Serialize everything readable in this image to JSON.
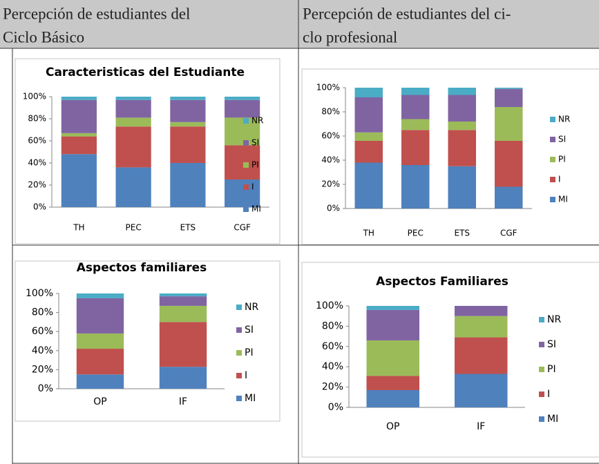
{
  "table": {
    "headers": [
      [
        "Percepción de estudiantes del",
        "Ciclo Básico"
      ],
      [
        "Percepción de estudiantes del ci-",
        "clo profesional"
      ]
    ]
  },
  "chart_data": [
    {
      "type": "bar",
      "stacked": true,
      "title": "Caracteristicas del Estudiante",
      "categories": [
        "TH",
        "PEC",
        "ETS",
        "CGF"
      ],
      "series": [
        {
          "name": "MI",
          "color": "#4f81bd",
          "values": [
            48,
            36,
            40,
            25
          ]
        },
        {
          "name": "I",
          "color": "#c0504d",
          "values": [
            16,
            37,
            33,
            31
          ]
        },
        {
          "name": "PI",
          "color": "#9bbb59",
          "values": [
            3,
            8,
            4,
            25
          ]
        },
        {
          "name": "SI",
          "color": "#8064a2",
          "values": [
            30,
            16,
            20,
            16
          ]
        },
        {
          "name": "NR",
          "color": "#4bacc6",
          "values": [
            3,
            3,
            3,
            3
          ]
        }
      ],
      "ylim": [
        0,
        100
      ],
      "yticks": [
        {
          "value": 0,
          "label": "0%"
        },
        {
          "value": 20,
          "label": "20%"
        },
        {
          "value": 40,
          "label": "40%"
        },
        {
          "value": 60,
          "label": "60%"
        },
        {
          "value": 80,
          "label": "80%"
        },
        {
          "value": 100,
          "label": "100%"
        }
      ],
      "legend": "right"
    },
    {
      "type": "bar",
      "stacked": true,
      "categories": [
        "TH",
        "PEC",
        "ETS",
        "CGF"
      ],
      "series": [
        {
          "name": "MI",
          "color": "#4f81bd",
          "values": [
            38,
            36,
            35,
            18
          ]
        },
        {
          "name": "I",
          "color": "#c0504d",
          "values": [
            18,
            29,
            30,
            38
          ]
        },
        {
          "name": "PI",
          "color": "#9bbb59",
          "values": [
            7,
            9,
            7,
            28
          ]
        },
        {
          "name": "SI",
          "color": "#8064a2",
          "values": [
            29,
            20,
            22,
            15
          ]
        },
        {
          "name": "NR",
          "color": "#4bacc6",
          "values": [
            8,
            6,
            6,
            1
          ]
        }
      ],
      "ylim": [
        0,
        100
      ],
      "yticks": [
        {
          "value": 0,
          "label": "0%"
        },
        {
          "value": 20,
          "label": "20%"
        },
        {
          "value": 40,
          "label": "40%"
        },
        {
          "value": 60,
          "label": "60%"
        },
        {
          "value": 80,
          "label": "80%"
        },
        {
          "value": 100,
          "label": "100%"
        }
      ],
      "legend": "right"
    },
    {
      "type": "bar",
      "stacked": true,
      "title": "Aspectos familiares",
      "categories": [
        "OP",
        "IF"
      ],
      "series": [
        {
          "name": "MI",
          "color": "#4f81bd",
          "values": [
            15,
            23
          ]
        },
        {
          "name": "I",
          "color": "#c0504d",
          "values": [
            27,
            47
          ]
        },
        {
          "name": "PI",
          "color": "#9bbb59",
          "values": [
            16,
            17
          ]
        },
        {
          "name": "SI",
          "color": "#8064a2",
          "values": [
            37,
            10
          ]
        },
        {
          "name": "NR",
          "color": "#4bacc6",
          "values": [
            5,
            3
          ]
        }
      ],
      "ylim": [
        0,
        100
      ],
      "yticks": [
        {
          "value": 0,
          "label": "0%"
        },
        {
          "value": 20,
          "label": "20%"
        },
        {
          "value": 40,
          "label": "40%"
        },
        {
          "value": 60,
          "label": "60%"
        },
        {
          "value": 80,
          "label": "80%"
        },
        {
          "value": 100,
          "label": "100%"
        }
      ],
      "legend": "right"
    },
    {
      "type": "bar",
      "stacked": true,
      "title": "Aspectos Familiares",
      "categories": [
        "OP",
        "IF"
      ],
      "series": [
        {
          "name": "MI",
          "color": "#4f81bd",
          "values": [
            17,
            33
          ]
        },
        {
          "name": "I",
          "color": "#c0504d",
          "values": [
            14,
            36
          ]
        },
        {
          "name": "PI",
          "color": "#9bbb59",
          "values": [
            35,
            21
          ]
        },
        {
          "name": "SI",
          "color": "#8064a2",
          "values": [
            30,
            10
          ]
        },
        {
          "name": "NR",
          "color": "#4bacc6",
          "values": [
            4,
            0
          ]
        }
      ],
      "ylim": [
        0,
        100
      ],
      "yticks": [
        {
          "value": 0,
          "label": "0%"
        },
        {
          "value": 20,
          "label": "20%"
        },
        {
          "value": 40,
          "label": "40%"
        },
        {
          "value": 60,
          "label": "60%"
        },
        {
          "value": 80,
          "label": "80%"
        },
        {
          "value": 100,
          "label": "100%"
        }
      ],
      "legend": "right"
    }
  ]
}
